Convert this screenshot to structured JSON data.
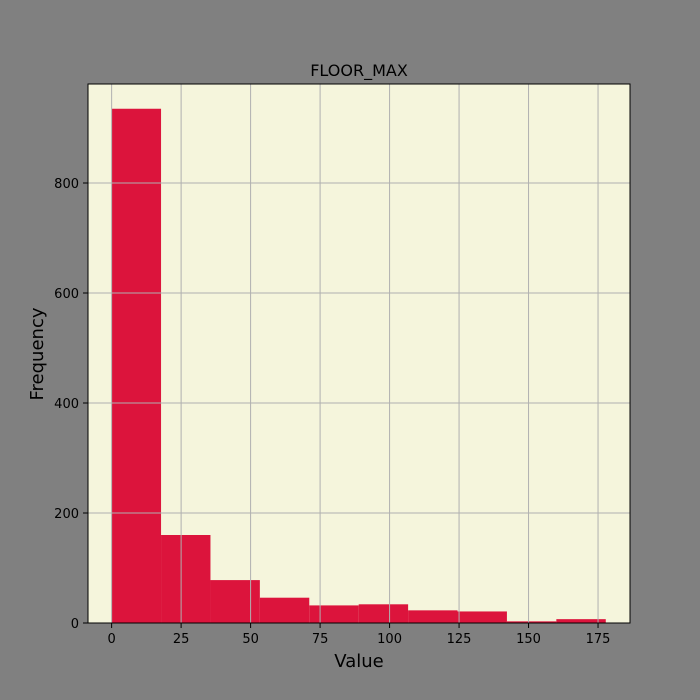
{
  "colors": {
    "figure_background": "#808080",
    "plot_background": "#f5f5dc",
    "bar_fill": "#dc143c",
    "grid": "#b0b0b0",
    "axis": "#000000"
  },
  "chart_data": {
    "type": "bar",
    "subtype": "histogram",
    "title": "FLOOR_MAX",
    "xlabel": "Value",
    "ylabel": "Frequency",
    "xlim": [
      -8.5,
      186.5
    ],
    "ylim": [
      0,
      980
    ],
    "xticks": [
      0,
      25,
      50,
      75,
      100,
      125,
      150,
      175
    ],
    "yticks": [
      0,
      200,
      400,
      600,
      800
    ],
    "grid": true,
    "bins": [
      {
        "start": 0,
        "end": 17.78,
        "count": 935
      },
      {
        "start": 17.78,
        "end": 35.56,
        "count": 160
      },
      {
        "start": 35.56,
        "end": 53.33,
        "count": 78
      },
      {
        "start": 53.33,
        "end": 71.11,
        "count": 46
      },
      {
        "start": 71.11,
        "end": 88.89,
        "count": 32
      },
      {
        "start": 88.89,
        "end": 106.67,
        "count": 34
      },
      {
        "start": 106.67,
        "end": 124.44,
        "count": 23
      },
      {
        "start": 124.44,
        "end": 142.22,
        "count": 21
      },
      {
        "start": 142.22,
        "end": 160.0,
        "count": 3
      },
      {
        "start": 160.0,
        "end": 177.78,
        "count": 7
      }
    ]
  }
}
